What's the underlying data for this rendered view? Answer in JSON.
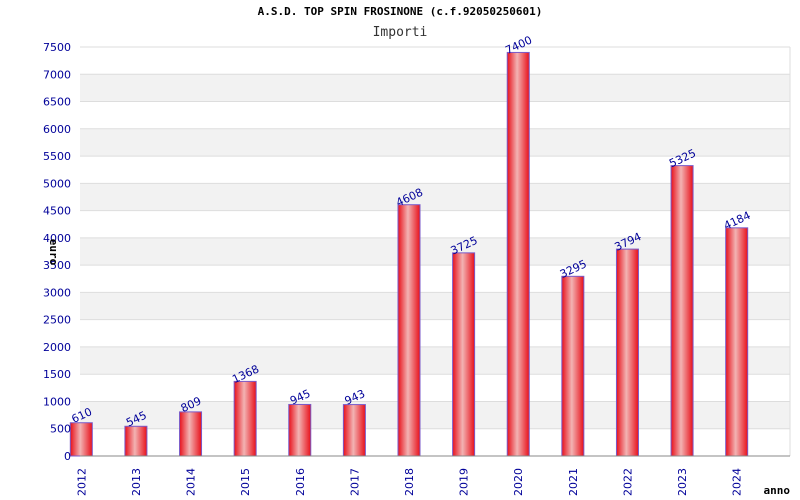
{
  "chart_data": {
    "type": "bar",
    "title": "A.S.D. TOP SPIN FROSINONE (c.f.92050250601)",
    "subtitle": "Importi",
    "xlabel": "anno",
    "ylabel": "euro",
    "categories": [
      "2012",
      "2013",
      "2014",
      "2015",
      "2016",
      "2017",
      "2018",
      "2019",
      "2020",
      "2021",
      "2022",
      "2023",
      "2024"
    ],
    "values": [
      610,
      545,
      809,
      1368,
      945,
      943,
      4608,
      3725,
      7400,
      3295,
      3794,
      5325,
      4184
    ],
    "ylim": [
      0,
      7500
    ],
    "ytick_step": 500,
    "grid": true,
    "legend": "none",
    "colors": {
      "bar": "#e8101a",
      "bar_highlight": "#f0b0b0",
      "bar_edge": "#7a5ac8",
      "label": "#000099",
      "band": "#f2f2f2"
    }
  }
}
